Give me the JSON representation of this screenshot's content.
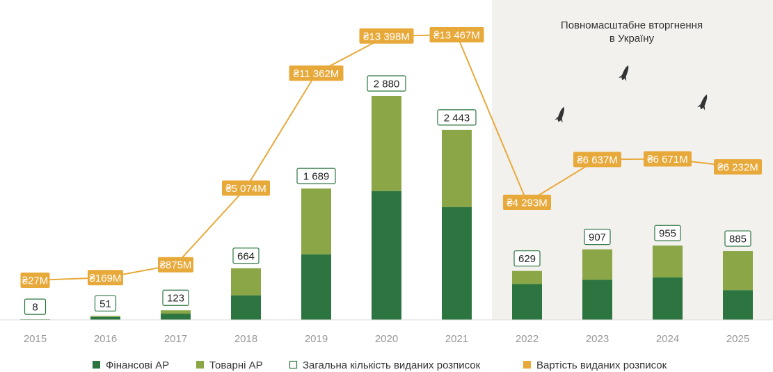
{
  "chart_data": {
    "type": "bar",
    "categories": [
      "2015",
      "2016",
      "2017",
      "2018",
      "2019",
      "2020",
      "2021",
      "2022",
      "2023",
      "2024",
      "2025"
    ],
    "series": [
      {
        "name": "Фінансові АР",
        "values": [
          7,
          38,
          80,
          316,
          843,
          1657,
          1452,
          460,
          515,
          545,
          383
        ]
      },
      {
        "name": "Товарні АР",
        "values": [
          1,
          13,
          43,
          348,
          846,
          1223,
          991,
          169,
          392,
          410,
          502
        ]
      }
    ],
    "totals": [
      8,
      51,
      123,
      664,
      1689,
      2880,
      2443,
      629,
      907,
      955,
      885
    ],
    "total_labels": [
      "8",
      "51",
      "123",
      "664",
      "1 689",
      "2 880",
      "2 443",
      "629",
      "907",
      "955",
      "885"
    ],
    "total_series_name": "Загальна кількість виданих розписок",
    "line_series": {
      "name": "Вартість виданих розписок",
      "values": [
        27,
        169,
        875,
        5074,
        11362,
        13398,
        13467,
        4293,
        6637,
        6671,
        6232
      ],
      "labels": [
        "₴27M",
        "₴169M",
        "₴875M",
        "₴5 074M",
        "₴11 362M",
        "₴13 398M",
        "₴13 467M",
        "₴4 293M",
        "₴6 637M",
        "₴6 671M",
        "₴6 232M"
      ]
    },
    "annotation": {
      "lines": [
        "Повномасштабне вторгнення",
        "в Україну"
      ],
      "from_category": "2022"
    },
    "legend_position": "bottom",
    "grid": false,
    "colors": {
      "financial": "#2c7541",
      "goods": "#8ba646",
      "total_box": "#2c7541",
      "line": "#e8a93b",
      "shade": "#f2f1ee",
      "axis_text": "#999999"
    },
    "title": "",
    "xlabel": "",
    "ylabel": ""
  }
}
